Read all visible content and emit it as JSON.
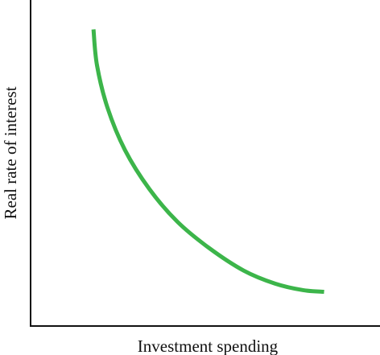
{
  "chart_data": {
    "type": "line",
    "xlabel": "Investment spending",
    "ylabel": "Real rate of interest",
    "xlim": [
      0,
      100
    ],
    "ylim": [
      0,
      100
    ],
    "grid": false,
    "series": [
      {
        "color": "#3cb54a",
        "x": [
          18,
          19,
          22,
          27,
          34,
          42,
          51,
          61,
          70,
          78,
          84
        ],
        "y": [
          91,
          80,
          67,
          54,
          42,
          32,
          24,
          17,
          13,
          11,
          10.5
        ]
      }
    ]
  }
}
